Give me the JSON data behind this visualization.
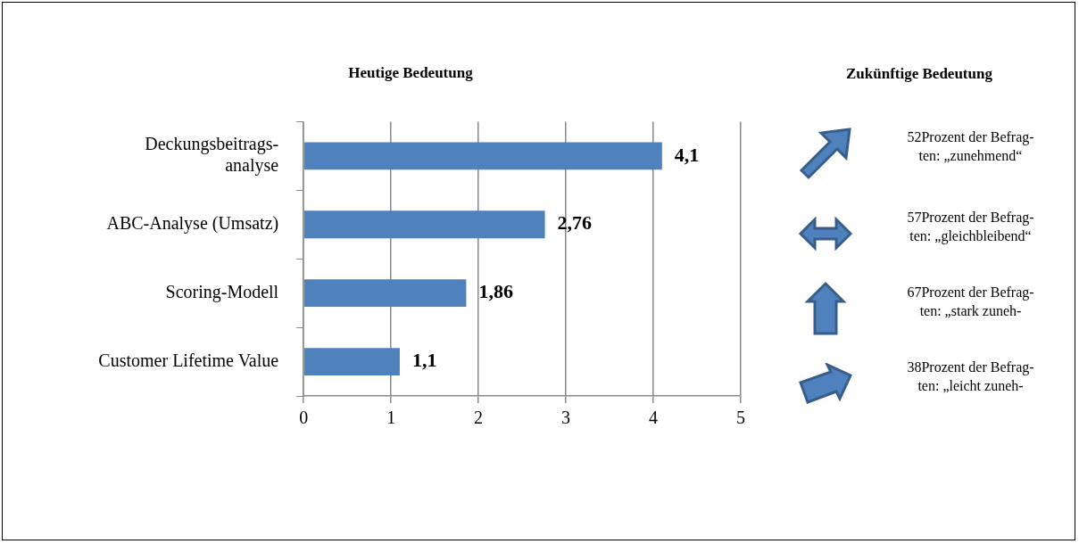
{
  "chart_data": [
    {
      "type": "bar",
      "orientation": "horizontal",
      "title": "Heutige Bedeutung",
      "categories": [
        "Deckungsbeitrags-analyse",
        "ABC-Analyse (Umsatz)",
        "Scoring-Modell",
        "Customer Lifetime Value"
      ],
      "values": [
        4.1,
        2.76,
        1.86,
        1.1
      ],
      "color": "#4f81bd",
      "value_labels": [
        "4,1",
        "2,76",
        "1,86",
        "1,1"
      ],
      "xlim": [
        0,
        5
      ],
      "xticks": [
        0,
        1,
        2,
        3,
        4,
        5
      ],
      "grid": "x"
    },
    {
      "type": "other",
      "title": "Zukünftige Bedeutung",
      "annotations": [
        "52Prozent der Befrag-ten: „zunehmend“",
        "57Prozent der Befrag-ten: „gleichbleibend“",
        "67Prozent der Befrag-ten: „stark zuneh-",
        "38Prozent der Befrag-ten: „leicht zuneh-"
      ]
    }
  ]
}
